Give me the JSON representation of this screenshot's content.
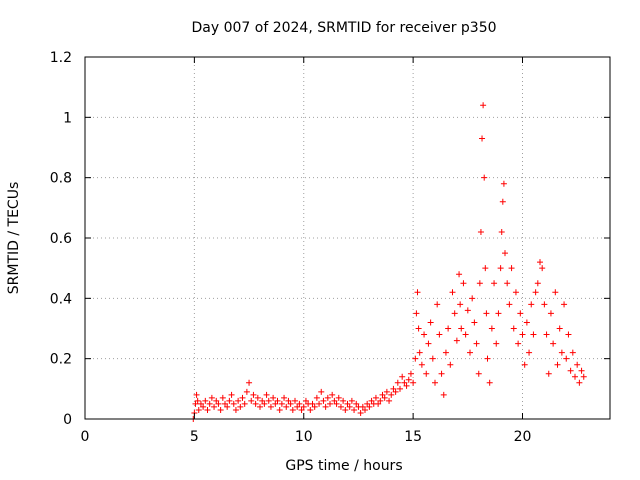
{
  "chart_data": {
    "type": "scatter",
    "title": "Day 007 of 2024, SRMTID for receiver p350",
    "xlabel": "GPS time / hours",
    "ylabel": "SRMTID / TECUs",
    "xlim": [
      0,
      24
    ],
    "ylim": [
      0,
      1.2
    ],
    "xticks": [
      0,
      5,
      10,
      15,
      20
    ],
    "xtick_labels": [
      "0",
      "5",
      "10",
      "15",
      "20"
    ],
    "yticks": [
      0,
      0.2,
      0.4,
      0.6,
      0.8,
      1,
      1.2
    ],
    "ytick_labels": [
      "0",
      "0.2",
      "0.4",
      "0.6",
      "0.8",
      "1",
      "1.2"
    ],
    "grid": true,
    "marker": "+",
    "marker_color": "#ff0000",
    "series": [
      {
        "name": "SRMTID",
        "points": [
          [
            4.95,
            0.0
          ],
          [
            5.0,
            0.02
          ],
          [
            5.05,
            0.05
          ],
          [
            5.1,
            0.08
          ],
          [
            5.15,
            0.06
          ],
          [
            5.2,
            0.03
          ],
          [
            5.3,
            0.05
          ],
          [
            5.4,
            0.04
          ],
          [
            5.5,
            0.06
          ],
          [
            5.6,
            0.03
          ],
          [
            5.7,
            0.05
          ],
          [
            5.8,
            0.07
          ],
          [
            5.9,
            0.04
          ],
          [
            6.0,
            0.06
          ],
          [
            6.1,
            0.05
          ],
          [
            6.2,
            0.03
          ],
          [
            6.3,
            0.07
          ],
          [
            6.4,
            0.05
          ],
          [
            6.5,
            0.04
          ],
          [
            6.6,
            0.06
          ],
          [
            6.7,
            0.08
          ],
          [
            6.8,
            0.05
          ],
          [
            6.9,
            0.03
          ],
          [
            7.0,
            0.06
          ],
          [
            7.1,
            0.04
          ],
          [
            7.2,
            0.07
          ],
          [
            7.3,
            0.05
          ],
          [
            7.4,
            0.09
          ],
          [
            7.5,
            0.12
          ],
          [
            7.6,
            0.06
          ],
          [
            7.7,
            0.08
          ],
          [
            7.8,
            0.05
          ],
          [
            7.9,
            0.07
          ],
          [
            8.0,
            0.04
          ],
          [
            8.1,
            0.06
          ],
          [
            8.2,
            0.05
          ],
          [
            8.3,
            0.08
          ],
          [
            8.4,
            0.06
          ],
          [
            8.5,
            0.04
          ],
          [
            8.6,
            0.07
          ],
          [
            8.7,
            0.05
          ],
          [
            8.8,
            0.06
          ],
          [
            8.9,
            0.03
          ],
          [
            9.0,
            0.05
          ],
          [
            9.1,
            0.07
          ],
          [
            9.2,
            0.04
          ],
          [
            9.3,
            0.06
          ],
          [
            9.4,
            0.05
          ],
          [
            9.5,
            0.03
          ],
          [
            9.6,
            0.06
          ],
          [
            9.7,
            0.04
          ],
          [
            9.8,
            0.05
          ],
          [
            9.9,
            0.03
          ],
          [
            10.0,
            0.04
          ],
          [
            10.1,
            0.06
          ],
          [
            10.2,
            0.05
          ],
          [
            10.3,
            0.03
          ],
          [
            10.4,
            0.05
          ],
          [
            10.5,
            0.04
          ],
          [
            10.6,
            0.07
          ],
          [
            10.7,
            0.05
          ],
          [
            10.8,
            0.09
          ],
          [
            10.9,
            0.06
          ],
          [
            11.0,
            0.04
          ],
          [
            11.1,
            0.07
          ],
          [
            11.2,
            0.05
          ],
          [
            11.3,
            0.08
          ],
          [
            11.4,
            0.06
          ],
          [
            11.5,
            0.05
          ],
          [
            11.6,
            0.07
          ],
          [
            11.7,
            0.04
          ],
          [
            11.8,
            0.06
          ],
          [
            11.9,
            0.03
          ],
          [
            12.0,
            0.05
          ],
          [
            12.1,
            0.04
          ],
          [
            12.2,
            0.06
          ],
          [
            12.3,
            0.03
          ],
          [
            12.4,
            0.05
          ],
          [
            12.5,
            0.04
          ],
          [
            12.6,
            0.02
          ],
          [
            12.7,
            0.04
          ],
          [
            12.8,
            0.03
          ],
          [
            12.9,
            0.05
          ],
          [
            13.0,
            0.04
          ],
          [
            13.1,
            0.06
          ],
          [
            13.2,
            0.05
          ],
          [
            13.3,
            0.07
          ],
          [
            13.4,
            0.05
          ],
          [
            13.5,
            0.06
          ],
          [
            13.6,
            0.08
          ],
          [
            13.7,
            0.07
          ],
          [
            13.8,
            0.09
          ],
          [
            13.9,
            0.06
          ],
          [
            14.0,
            0.08
          ],
          [
            14.1,
            0.1
          ],
          [
            14.2,
            0.09
          ],
          [
            14.3,
            0.12
          ],
          [
            14.4,
            0.1
          ],
          [
            14.5,
            0.14
          ],
          [
            14.6,
            0.12
          ],
          [
            14.7,
            0.11
          ],
          [
            14.8,
            0.13
          ],
          [
            14.9,
            0.15
          ],
          [
            15.0,
            0.12
          ],
          [
            15.1,
            0.2
          ],
          [
            15.15,
            0.35
          ],
          [
            15.2,
            0.42
          ],
          [
            15.25,
            0.3
          ],
          [
            15.3,
            0.22
          ],
          [
            15.4,
            0.18
          ],
          [
            15.5,
            0.28
          ],
          [
            15.6,
            0.15
          ],
          [
            15.7,
            0.25
          ],
          [
            15.8,
            0.32
          ],
          [
            15.9,
            0.2
          ],
          [
            16.0,
            0.12
          ],
          [
            16.1,
            0.38
          ],
          [
            16.2,
            0.28
          ],
          [
            16.3,
            0.15
          ],
          [
            16.4,
            0.08
          ],
          [
            16.5,
            0.22
          ],
          [
            16.6,
            0.3
          ],
          [
            16.7,
            0.18
          ],
          [
            16.8,
            0.42
          ],
          [
            16.9,
            0.35
          ],
          [
            17.0,
            0.26
          ],
          [
            17.1,
            0.48
          ],
          [
            17.15,
            0.38
          ],
          [
            17.2,
            0.3
          ],
          [
            17.3,
            0.45
          ],
          [
            17.4,
            0.28
          ],
          [
            17.5,
            0.36
          ],
          [
            17.6,
            0.22
          ],
          [
            17.7,
            0.4
          ],
          [
            17.8,
            0.32
          ],
          [
            17.9,
            0.25
          ],
          [
            18.0,
            0.15
          ],
          [
            18.05,
            0.45
          ],
          [
            18.1,
            0.62
          ],
          [
            18.15,
            0.93
          ],
          [
            18.2,
            1.04
          ],
          [
            18.25,
            0.8
          ],
          [
            18.3,
            0.5
          ],
          [
            18.35,
            0.35
          ],
          [
            18.4,
            0.2
          ],
          [
            18.5,
            0.12
          ],
          [
            18.6,
            0.3
          ],
          [
            18.7,
            0.45
          ],
          [
            18.8,
            0.25
          ],
          [
            18.9,
            0.35
          ],
          [
            19.0,
            0.5
          ],
          [
            19.05,
            0.62
          ],
          [
            19.1,
            0.72
          ],
          [
            19.15,
            0.78
          ],
          [
            19.2,
            0.55
          ],
          [
            19.3,
            0.45
          ],
          [
            19.4,
            0.38
          ],
          [
            19.5,
            0.5
          ],
          [
            19.6,
            0.3
          ],
          [
            19.7,
            0.42
          ],
          [
            19.8,
            0.25
          ],
          [
            19.9,
            0.35
          ],
          [
            20.0,
            0.28
          ],
          [
            20.1,
            0.18
          ],
          [
            20.2,
            0.32
          ],
          [
            20.3,
            0.22
          ],
          [
            20.4,
            0.38
          ],
          [
            20.5,
            0.28
          ],
          [
            20.6,
            0.42
          ],
          [
            20.7,
            0.45
          ],
          [
            20.8,
            0.52
          ],
          [
            20.9,
            0.5
          ],
          [
            21.0,
            0.38
          ],
          [
            21.1,
            0.28
          ],
          [
            21.2,
            0.15
          ],
          [
            21.3,
            0.35
          ],
          [
            21.4,
            0.25
          ],
          [
            21.5,
            0.42
          ],
          [
            21.6,
            0.18
          ],
          [
            21.7,
            0.3
          ],
          [
            21.8,
            0.22
          ],
          [
            21.9,
            0.38
          ],
          [
            22.0,
            0.2
          ],
          [
            22.1,
            0.28
          ],
          [
            22.2,
            0.16
          ],
          [
            22.3,
            0.22
          ],
          [
            22.4,
            0.14
          ],
          [
            22.5,
            0.18
          ],
          [
            22.6,
            0.12
          ],
          [
            22.7,
            0.16
          ],
          [
            22.8,
            0.14
          ]
        ]
      }
    ]
  }
}
